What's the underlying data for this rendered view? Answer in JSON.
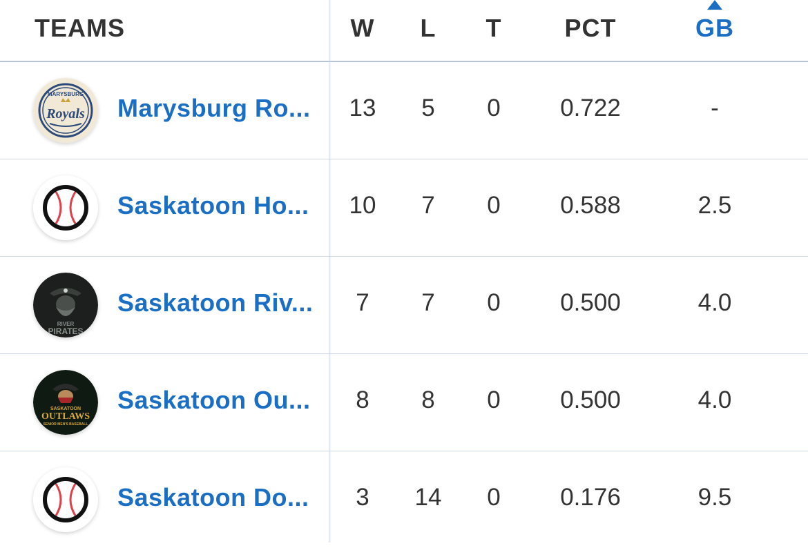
{
  "header": {
    "teams": "TEAMS",
    "w": "W",
    "l": "L",
    "t": "T",
    "pct": "PCT",
    "gb": "GB",
    "sort_column": "GB",
    "sort_direction": "ascending"
  },
  "colors": {
    "link": "#1a6fc4",
    "text": "#333333",
    "row_border": "#cfd9e5"
  },
  "rows": [
    {
      "team": "Marysburg Ro...",
      "logo": "marysburg-royals-logo",
      "logo_text_top": "MARYSBURG",
      "logo_text_main": "Royals",
      "w": "13",
      "l": "5",
      "t": "0",
      "pct": "0.722",
      "gb": "-"
    },
    {
      "team": "Saskatoon Ho...",
      "logo": "baseball-icon",
      "w": "10",
      "l": "7",
      "t": "0",
      "pct": "0.588",
      "gb": "2.5"
    },
    {
      "team": "Saskatoon Riv...",
      "logo": "river-pirates-logo",
      "logo_text_top": "RIVER",
      "logo_text_main": "PIRATES",
      "w": "7",
      "l": "7",
      "t": "0",
      "pct": "0.500",
      "gb": "4.0"
    },
    {
      "team": "Saskatoon Ou...",
      "logo": "saskatoon-outlaws-logo",
      "logo_text_top": "SASKATOON",
      "logo_text_main": "OUTLAWS",
      "logo_text_bottom": "SENIOR MEN'S BASEBALL",
      "w": "8",
      "l": "8",
      "t": "0",
      "pct": "0.500",
      "gb": "4.0"
    },
    {
      "team": "Saskatoon Do...",
      "logo": "baseball-icon",
      "w": "3",
      "l": "14",
      "t": "0",
      "pct": "0.176",
      "gb": "9.5"
    }
  ]
}
